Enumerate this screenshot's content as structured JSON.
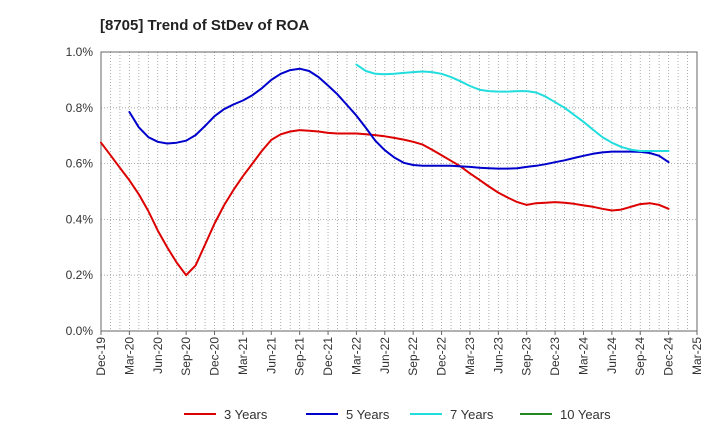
{
  "chart_data": {
    "type": "line",
    "title": "[8705]  Trend of StDev of ROA",
    "xlabel": "",
    "ylabel": "",
    "x_ticks": [
      "Dec-19",
      "Mar-20",
      "Jun-20",
      "Sep-20",
      "Dec-20",
      "Mar-21",
      "Jun-21",
      "Sep-21",
      "Dec-21",
      "Mar-22",
      "Jun-22",
      "Sep-22",
      "Dec-22",
      "Mar-23",
      "Jun-23",
      "Sep-23",
      "Dec-23",
      "Mar-24",
      "Jun-24",
      "Sep-24",
      "Dec-24",
      "Mar-25"
    ],
    "y_ticks": [
      "0.0%",
      "0.2%",
      "0.4%",
      "0.6%",
      "0.8%",
      "1.0%"
    ],
    "ylim": [
      0,
      1.0
    ],
    "grid": true,
    "legend_position": "bottom",
    "series": [
      {
        "name": "3 Years",
        "color": "#dd0000",
        "x": [
          "2019-12",
          "2020-01",
          "2020-02",
          "2020-03",
          "2020-04",
          "2020-05",
          "2020-06",
          "2020-07",
          "2020-08",
          "2020-09",
          "2020-10",
          "2020-11",
          "2020-12",
          "2021-01",
          "2021-02",
          "2021-03",
          "2021-04",
          "2021-05",
          "2021-06",
          "2021-07",
          "2021-08",
          "2021-09",
          "2021-10",
          "2021-11",
          "2021-12",
          "2022-01",
          "2022-02",
          "2022-03",
          "2022-04",
          "2022-05",
          "2022-06",
          "2022-07",
          "2022-08",
          "2022-09",
          "2022-10",
          "2022-11",
          "2022-12",
          "2023-01",
          "2023-02",
          "2023-03",
          "2023-04",
          "2023-05",
          "2023-06",
          "2023-07",
          "2023-08",
          "2023-09",
          "2023-10",
          "2023-11",
          "2023-12",
          "2024-01",
          "2024-02",
          "2024-03",
          "2024-04",
          "2024-05",
          "2024-06",
          "2024-07",
          "2024-08",
          "2024-09",
          "2024-10",
          "2024-11",
          "2024-12"
        ],
        "values": [
          0.675,
          0.63,
          0.585,
          0.54,
          0.49,
          0.43,
          0.36,
          0.3,
          0.245,
          0.2,
          0.235,
          0.31,
          0.385,
          0.45,
          0.505,
          0.555,
          0.6,
          0.645,
          0.685,
          0.705,
          0.715,
          0.72,
          0.718,
          0.715,
          0.71,
          0.708,
          0.708,
          0.708,
          0.705,
          0.702,
          0.698,
          0.692,
          0.686,
          0.678,
          0.668,
          0.65,
          0.63,
          0.61,
          0.59,
          0.565,
          0.542,
          0.518,
          0.496,
          0.478,
          0.462,
          0.452,
          0.458,
          0.46,
          0.462,
          0.46,
          0.456,
          0.45,
          0.445,
          0.438,
          0.432,
          0.435,
          0.445,
          0.455,
          0.458,
          0.452,
          0.438
        ]
      },
      {
        "name": "5 Years",
        "color": "#0000cc",
        "x": [
          "2020-03",
          "2020-04",
          "2020-05",
          "2020-06",
          "2020-07",
          "2020-08",
          "2020-09",
          "2020-10",
          "2020-11",
          "2020-12",
          "2021-01",
          "2021-02",
          "2021-03",
          "2021-04",
          "2021-05",
          "2021-06",
          "2021-07",
          "2021-08",
          "2021-09",
          "2021-10",
          "2021-11",
          "2021-12",
          "2022-01",
          "2022-02",
          "2022-03",
          "2022-04",
          "2022-05",
          "2022-06",
          "2022-07",
          "2022-08",
          "2022-09",
          "2022-10",
          "2022-11",
          "2022-12",
          "2023-01",
          "2023-02",
          "2023-03",
          "2023-04",
          "2023-05",
          "2023-06",
          "2023-07",
          "2023-08",
          "2023-09",
          "2023-10",
          "2023-11",
          "2023-12",
          "2024-01",
          "2024-02",
          "2024-03",
          "2024-04",
          "2024-05",
          "2024-06",
          "2024-07",
          "2024-08",
          "2024-09",
          "2024-10",
          "2024-11",
          "2024-12"
        ],
        "values": [
          0.785,
          0.73,
          0.695,
          0.678,
          0.672,
          0.675,
          0.682,
          0.702,
          0.735,
          0.77,
          0.795,
          0.812,
          0.826,
          0.845,
          0.87,
          0.9,
          0.922,
          0.935,
          0.94,
          0.932,
          0.91,
          0.88,
          0.848,
          0.81,
          0.772,
          0.728,
          0.682,
          0.648,
          0.622,
          0.603,
          0.595,
          0.592,
          0.592,
          0.592,
          0.592,
          0.59,
          0.588,
          0.585,
          0.583,
          0.582,
          0.582,
          0.583,
          0.588,
          0.592,
          0.598,
          0.605,
          0.612,
          0.62,
          0.628,
          0.635,
          0.64,
          0.643,
          0.643,
          0.643,
          0.642,
          0.638,
          0.628,
          0.605
        ]
      },
      {
        "name": "7 Years",
        "color": "#22dddd",
        "x": [
          "2022-03",
          "2022-04",
          "2022-05",
          "2022-06",
          "2022-07",
          "2022-08",
          "2022-09",
          "2022-10",
          "2022-11",
          "2022-12",
          "2023-01",
          "2023-02",
          "2023-03",
          "2023-04",
          "2023-05",
          "2023-06",
          "2023-07",
          "2023-08",
          "2023-09",
          "2023-10",
          "2023-11",
          "2023-12",
          "2024-01",
          "2024-02",
          "2024-03",
          "2024-04",
          "2024-05",
          "2024-06",
          "2024-07",
          "2024-08",
          "2024-09",
          "2024-10",
          "2024-11",
          "2024-12"
        ],
        "values": [
          0.955,
          0.932,
          0.922,
          0.92,
          0.922,
          0.925,
          0.928,
          0.93,
          0.928,
          0.922,
          0.91,
          0.895,
          0.878,
          0.865,
          0.86,
          0.858,
          0.858,
          0.86,
          0.86,
          0.855,
          0.84,
          0.82,
          0.8,
          0.775,
          0.75,
          0.722,
          0.695,
          0.675,
          0.66,
          0.65,
          0.645,
          0.645,
          0.645,
          0.645
        ]
      },
      {
        "name": "10 Years",
        "color": "#228822",
        "x": [],
        "values": []
      }
    ]
  }
}
